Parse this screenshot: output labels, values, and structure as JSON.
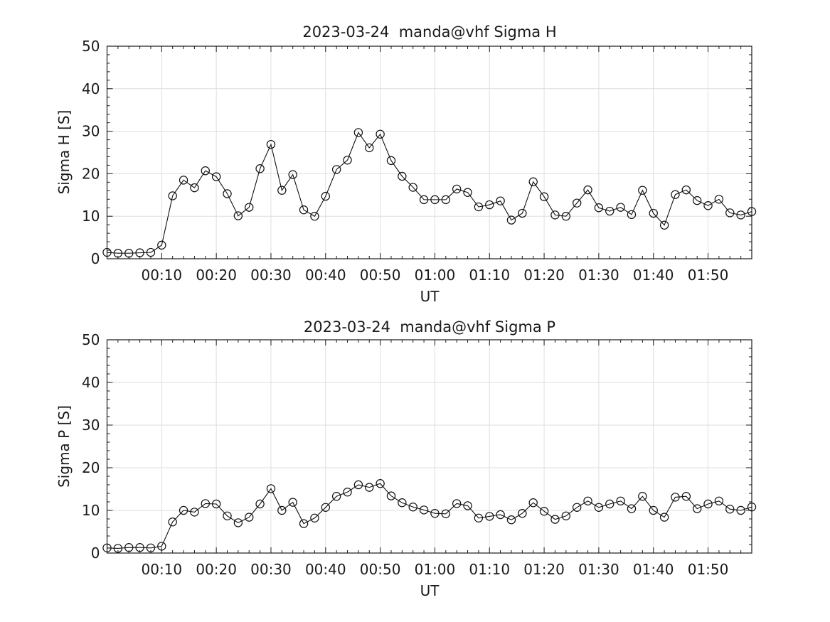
{
  "figure": {
    "background": "#ffffff",
    "axis_color": "#1a1a1a",
    "grid_color": "#dedede",
    "line_color": "#111111",
    "marker": "open-circle"
  },
  "chart_data": [
    {
      "type": "line",
      "title": "2023-03-24  manda@vhf Sigma H",
      "xlabel": "UT",
      "ylabel": "Sigma H [S]",
      "ylim": [
        0,
        50
      ],
      "y_ticks": [
        0,
        10,
        20,
        30,
        40,
        50
      ],
      "y_minor_step": 2,
      "xlim_minutes": [
        0,
        118
      ],
      "x_tick_minutes": [
        10,
        20,
        30,
        40,
        50,
        60,
        70,
        80,
        90,
        100,
        110
      ],
      "x_tick_labels": [
        "00:10",
        "00:20",
        "00:30",
        "00:40",
        "00:50",
        "01:00",
        "01:10",
        "01:20",
        "01:30",
        "01:40",
        "01:50"
      ],
      "x_minor_step_minutes": 2,
      "grid": true,
      "legend": null,
      "x_times": [
        "00:00",
        "00:02",
        "00:04",
        "00:06",
        "00:08",
        "00:10",
        "00:12",
        "00:14",
        "00:16",
        "00:18",
        "00:20",
        "00:22",
        "00:24",
        "00:26",
        "00:28",
        "00:30",
        "00:32",
        "00:34",
        "00:36",
        "00:38",
        "00:40",
        "00:42",
        "00:44",
        "00:46",
        "00:48",
        "00:50",
        "00:52",
        "00:54",
        "00:56",
        "00:58",
        "01:00",
        "01:02",
        "01:04",
        "01:06",
        "01:08",
        "01:10",
        "01:12",
        "01:14",
        "01:16",
        "01:18",
        "01:20",
        "01:22",
        "01:24",
        "01:26",
        "01:28",
        "01:30",
        "01:32",
        "01:34",
        "01:36",
        "01:38",
        "01:40",
        "01:42",
        "01:44",
        "01:46",
        "01:48",
        "01:50",
        "01:52",
        "01:54",
        "01:56",
        "01:58"
      ],
      "values": [
        1.5,
        1.3,
        1.3,
        1.4,
        1.5,
        3.2,
        14.8,
        18.5,
        16.7,
        20.7,
        19.3,
        15.3,
        10.1,
        12.1,
        21.2,
        26.9,
        16.1,
        19.8,
        11.5,
        10.0,
        14.7,
        21.0,
        23.2,
        29.7,
        26.1,
        29.3,
        23.1,
        19.4,
        16.8,
        13.9,
        13.9,
        13.9,
        16.4,
        15.6,
        12.2,
        12.7,
        13.6,
        9.1,
        10.7,
        18.1,
        14.6,
        10.3,
        10.0,
        13.1,
        16.2,
        12.0,
        11.2,
        12.1,
        10.4,
        16.1,
        10.7,
        7.9,
        15.1,
        16.2,
        13.7,
        12.5,
        14.0,
        10.8,
        10.3,
        11.1
      ]
    },
    {
      "type": "line",
      "title": "2023-03-24  manda@vhf Sigma P",
      "xlabel": "UT",
      "ylabel": "Sigma P [S]",
      "ylim": [
        0,
        50
      ],
      "y_ticks": [
        0,
        10,
        20,
        30,
        40,
        50
      ],
      "y_minor_step": 2,
      "xlim_minutes": [
        0,
        118
      ],
      "x_tick_minutes": [
        10,
        20,
        30,
        40,
        50,
        60,
        70,
        80,
        90,
        100,
        110
      ],
      "x_tick_labels": [
        "00:10",
        "00:20",
        "00:30",
        "00:40",
        "00:50",
        "01:00",
        "01:10",
        "01:20",
        "01:30",
        "01:40",
        "01:50"
      ],
      "x_minor_step_minutes": 2,
      "grid": true,
      "legend": null,
      "x_times": [
        "00:00",
        "00:02",
        "00:04",
        "00:06",
        "00:08",
        "00:10",
        "00:12",
        "00:14",
        "00:16",
        "00:18",
        "00:20",
        "00:22",
        "00:24",
        "00:26",
        "00:28",
        "00:30",
        "00:32",
        "00:34",
        "00:36",
        "00:38",
        "00:40",
        "00:42",
        "00:44",
        "00:46",
        "00:48",
        "00:50",
        "00:52",
        "00:54",
        "00:56",
        "00:58",
        "01:00",
        "01:02",
        "01:04",
        "01:06",
        "01:08",
        "01:10",
        "01:12",
        "01:14",
        "01:16",
        "01:18",
        "01:20",
        "01:22",
        "01:24",
        "01:26",
        "01:28",
        "01:30",
        "01:32",
        "01:34",
        "01:36",
        "01:38",
        "01:40",
        "01:42",
        "01:44",
        "01:46",
        "01:48",
        "01:50",
        "01:52",
        "01:54",
        "01:56",
        "01:58"
      ],
      "values": [
        1.2,
        1.1,
        1.3,
        1.3,
        1.2,
        1.6,
        7.3,
        10.0,
        9.6,
        11.6,
        11.5,
        8.7,
        7.1,
        8.4,
        11.5,
        15.1,
        10.0,
        11.9,
        6.9,
        8.2,
        10.7,
        13.3,
        14.3,
        16.0,
        15.4,
        16.3,
        13.4,
        11.8,
        10.8,
        10.1,
        9.3,
        9.2,
        11.6,
        11.1,
        8.2,
        8.6,
        9.0,
        7.8,
        9.3,
        11.8,
        9.8,
        7.9,
        8.7,
        10.7,
        12.2,
        10.7,
        11.5,
        12.2,
        10.4,
        13.3,
        10.0,
        8.4,
        13.1,
        13.3,
        10.4,
        11.5,
        12.2,
        10.3,
        10.0,
        10.8
      ]
    }
  ]
}
